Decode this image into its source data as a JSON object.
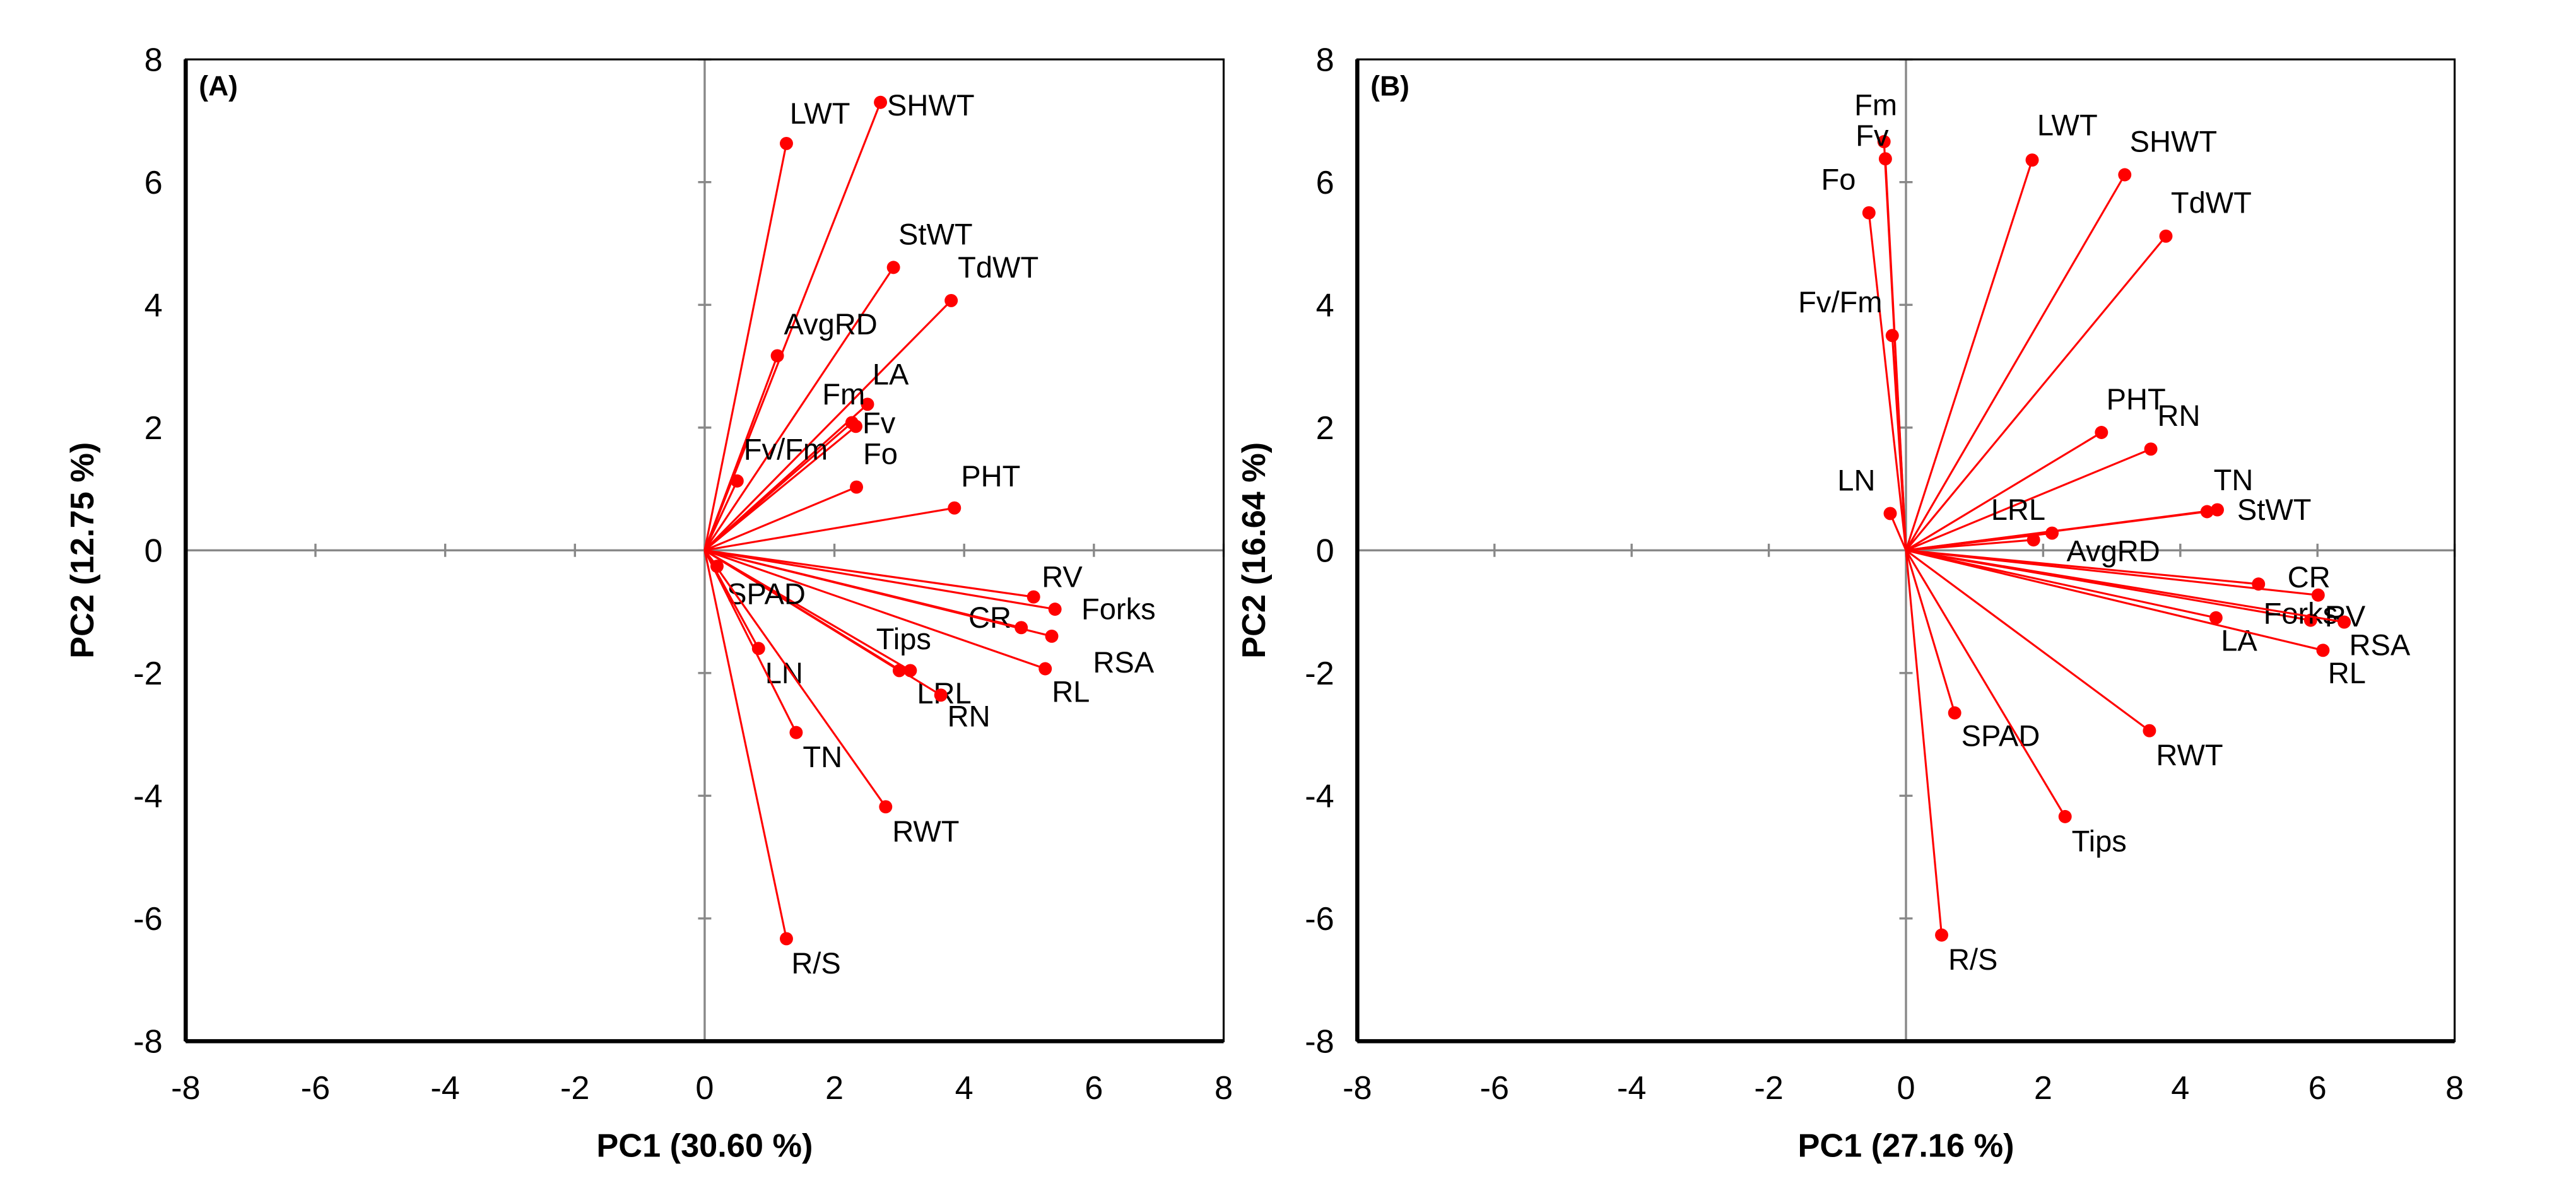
{
  "colors": {
    "vector": "#ff0000",
    "zero_line": "#888888",
    "frame": "#000000"
  },
  "chart_data": [
    {
      "type": "scatter",
      "subtype": "biplot-loadings",
      "panel_label": "(A)",
      "xlabel": "PC1 (30.60 %)",
      "ylabel": "PC2 (12.75 %)",
      "xlim": [
        -8,
        8
      ],
      "ylim": [
        -8,
        8
      ],
      "xticks": [
        "-8",
        "-6",
        "-4",
        "-2",
        "0",
        "2",
        "4",
        "6",
        "8"
      ],
      "yticks": [
        "8",
        "6",
        "4",
        "2",
        "0",
        "-2",
        "-4",
        "-6",
        "-8"
      ],
      "grid": false,
      "points": [
        {
          "label": "LWT",
          "x": 1.26,
          "y": 6.63
        },
        {
          "label": "SHWT",
          "x": 2.71,
          "y": 7.3
        },
        {
          "label": "StWT",
          "x": 2.91,
          "y": 4.61
        },
        {
          "label": "TdWT",
          "x": 3.8,
          "y": 4.07
        },
        {
          "label": "AvgRD",
          "x": 1.12,
          "y": 3.17
        },
        {
          "label": "LA",
          "x": 2.51,
          "y": 2.38
        },
        {
          "label": "Fm",
          "x": 2.27,
          "y": 2.08
        },
        {
          "label": "Fv",
          "x": 2.33,
          "y": 2.02
        },
        {
          "label": "Fv/Fm",
          "x": 0.5,
          "y": 1.13
        },
        {
          "label": "Fo",
          "x": 2.34,
          "y": 1.03
        },
        {
          "label": "PHT",
          "x": 3.85,
          "y": 0.69
        },
        {
          "label": "RV",
          "x": 5.07,
          "y": -0.76
        },
        {
          "label": "Forks",
          "x": 5.4,
          "y": -0.96
        },
        {
          "label": "CR",
          "x": 4.88,
          "y": -1.26
        },
        {
          "label": "RSA",
          "x": 5.35,
          "y": -1.4
        },
        {
          "label": "RL",
          "x": 5.25,
          "y": -1.93
        },
        {
          "label": "Tips",
          "x": 3.0,
          "y": -1.96
        },
        {
          "label": "LRL",
          "x": 3.17,
          "y": -1.96
        },
        {
          "label": "RN",
          "x": 3.64,
          "y": -2.36
        },
        {
          "label": "SPAD",
          "x": 0.19,
          "y": -0.26
        },
        {
          "label": "LN",
          "x": 0.83,
          "y": -1.6
        },
        {
          "label": "TN",
          "x": 1.41,
          "y": -2.97
        },
        {
          "label": "RWT",
          "x": 2.79,
          "y": -4.18
        },
        {
          "label": "R/S",
          "x": 1.26,
          "y": -6.33
        }
      ]
    },
    {
      "type": "scatter",
      "subtype": "biplot-loadings",
      "panel_label": "(B)",
      "xlabel": "PC1 (27.16 %)",
      "ylabel": "PC2 (16.64 %)",
      "xlim": [
        -8,
        8
      ],
      "ylim": [
        -8,
        8
      ],
      "xticks": [
        "-8",
        "-6",
        "-4",
        "-2",
        "0",
        "2",
        "4",
        "6",
        "8"
      ],
      "yticks": [
        "8",
        "6",
        "4",
        "2",
        "0",
        "-2",
        "-4",
        "-6",
        "-8"
      ],
      "grid": false,
      "points": [
        {
          "label": "Fm",
          "x": -0.32,
          "y": 6.66
        },
        {
          "label": "Fv",
          "x": -0.3,
          "y": 6.38
        },
        {
          "label": "Fo",
          "x": -0.54,
          "y": 5.5
        },
        {
          "label": "Fv/Fm",
          "x": -0.2,
          "y": 3.5
        },
        {
          "label": "LWT",
          "x": 1.84,
          "y": 6.36
        },
        {
          "label": "SHWT",
          "x": 3.19,
          "y": 6.12
        },
        {
          "label": "TdWT",
          "x": 3.79,
          "y": 5.12
        },
        {
          "label": "PHT",
          "x": 2.85,
          "y": 1.92
        },
        {
          "label": "RN",
          "x": 3.57,
          "y": 1.65
        },
        {
          "label": "TN",
          "x": 4.39,
          "y": 0.63
        },
        {
          "label": "StWT",
          "x": 4.54,
          "y": 0.66
        },
        {
          "label": "LN",
          "x": -0.23,
          "y": 0.6
        },
        {
          "label": "LRL",
          "x": 2.13,
          "y": 0.28
        },
        {
          "label": "AvgRD",
          "x": 1.86,
          "y": 0.17
        },
        {
          "label": "CR",
          "x": 5.9,
          "y": -1.14
        },
        {
          "label": "Forks",
          "x": 5.14,
          "y": -0.55
        },
        {
          "label": "RV",
          "x": 6.01,
          "y": -0.73
        },
        {
          "label": "RSA",
          "x": 6.39,
          "y": -1.17
        },
        {
          "label": "LA",
          "x": 4.52,
          "y": -1.1
        },
        {
          "label": "RL",
          "x": 6.08,
          "y": -1.63
        },
        {
          "label": "SPAD",
          "x": 0.71,
          "y": -2.65
        },
        {
          "label": "RWT",
          "x": 3.55,
          "y": -2.94
        },
        {
          "label": "Tips",
          "x": 2.32,
          "y": -4.34
        },
        {
          "label": "R/S",
          "x": 0.52,
          "y": -6.27
        }
      ]
    }
  ]
}
